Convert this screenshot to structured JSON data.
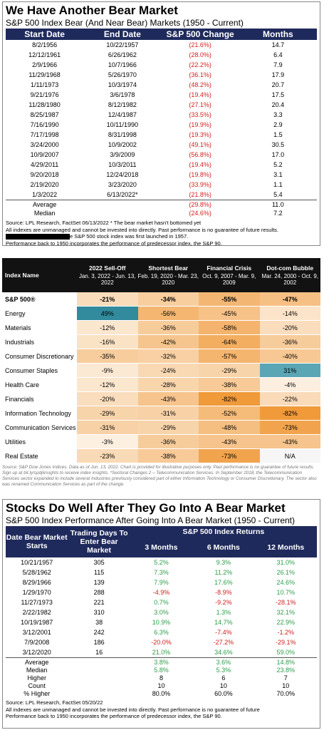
{
  "section1": {
    "title": "We Have Another Bear Market",
    "subtitle": "S&P 500 Index Bear (And Near Bear) Markets (1950 - Current)",
    "columns": [
      "Start Date",
      "End Date",
      "S&P 500 Change",
      "Months"
    ],
    "rows": [
      [
        "8/2/1956",
        "10/22/1957",
        "(21.6%)",
        "14.7"
      ],
      [
        "12/12/1961",
        "6/26/1962",
        "(28.0%)",
        "6.4"
      ],
      [
        "2/9/1966",
        "10/7/1966",
        "(22.2%)",
        "7.9"
      ],
      [
        "11/29/1968",
        "5/26/1970",
        "(36.1%)",
        "17.9"
      ],
      [
        "1/11/1973",
        "10/3/1974",
        "(48.2%)",
        "20.7"
      ],
      [
        "9/21/1976",
        "3/6/1978",
        "(19.4%)",
        "17.5"
      ],
      [
        "11/28/1980",
        "8/12/1982",
        "(27.1%)",
        "20.4"
      ],
      [
        "8/25/1987",
        "12/4/1987",
        "(33.5%)",
        "3.3"
      ],
      [
        "7/16/1990",
        "10/11/1990",
        "(19.9%)",
        "2.9"
      ],
      [
        "7/17/1998",
        "8/31/1998",
        "(19.3%)",
        "1.5"
      ],
      [
        "3/24/2000",
        "10/9/2002",
        "(49.1%)",
        "30.5"
      ],
      [
        "10/9/2007",
        "3/9/2009",
        "(56.8%)",
        "17.0"
      ],
      [
        "4/29/2011",
        "10/3/2011",
        "(19.4%)",
        "5.2"
      ],
      [
        "9/20/2018",
        "12/24/2018",
        "(19.8%)",
        "3.1"
      ],
      [
        "2/19/2020",
        "3/23/2020",
        "(33.9%)",
        "1.1"
      ],
      [
        "1/3/2022",
        "6/13/2022*",
        "(21.8%)",
        "5.4"
      ]
    ],
    "summary": [
      [
        "Average",
        "(29.8%)",
        "11.0"
      ],
      [
        "Median",
        "(24.6%)",
        "7.2"
      ]
    ],
    "notes": [
      "Source: LPL Research, FactSet 06/13/2022  * The bear market hasn't bottomed yet",
      "All indexes are unmanaged and cannot be invested into directly. Past performance is no guarantee of future results.",
      "e S&P 500 stock index was first launched in 1957.",
      "Performance back to 1950 incorporates the performance of predecessor index, the S&P 90."
    ]
  },
  "section2": {
    "columns": [
      {
        "name": "Index Name"
      },
      {
        "name": "2022 Sell-Off",
        "period": "Jan. 3, 2022 - Jun. 13, 2022"
      },
      {
        "name": "Shortest Bear",
        "period": "Feb. 19, 2020 - Mar. 23, 2020"
      },
      {
        "name": "Financial Crisis",
        "period": "Oct. 9, 2007 - Mar. 9, 2009"
      },
      {
        "name": "Dot-com Bubble",
        "period": "Mar. 24, 2000 - Oct. 9, 2002"
      }
    ],
    "rows": [
      [
        "S&P 500®",
        "-21%",
        "-34%",
        "-55%",
        "-47%"
      ],
      [
        "Energy",
        "49%",
        "-56%",
        "-45%",
        "-14%"
      ],
      [
        "Materials",
        "-12%",
        "-36%",
        "-58%",
        "-20%"
      ],
      [
        "Industrials",
        "-16%",
        "-42%",
        "-64%",
        "-36%"
      ],
      [
        "Consumer Discretionary",
        "-35%",
        "-32%",
        "-57%",
        "-40%"
      ],
      [
        "Consumer Staples",
        "-9%",
        "-24%",
        "-29%",
        "31%"
      ],
      [
        "Health Care",
        "-12%",
        "-28%",
        "-38%",
        "-4%"
      ],
      [
        "Financials",
        "-20%",
        "-43%",
        "-82%",
        "-22%"
      ],
      [
        "Information Technology",
        "-29%",
        "-31%",
        "-52%",
        "-82%"
      ],
      [
        "Communication Services",
        "-31%",
        "-29%",
        "-48%",
        "-73%"
      ],
      [
        "Utilities",
        "-3%",
        "-36%",
        "-43%",
        "-43%"
      ],
      [
        "Real Estate",
        "-23%",
        "-38%",
        "-73%",
        "N/A"
      ]
    ],
    "footnote": "Source: S&P Dow Jones Indices. Data as of Jun. 13, 2022. Chart is provided for illustrative purposes only. Past performance is no guarantee of future results. Sign up at bit.ly/spdjiinsights to receive index insights. *Sectoral Changes 2 – Telecommunication Services. In September 2018, the Telecommunication Services sector expanded to include several Industries previously considered part of either Information Technology or Consumer Discretionary. The sector also was renamed Communication Services as part of the change."
  },
  "section3": {
    "title": "Stocks Do Well After They Go Into A Bear Market",
    "subtitle": "S&P 500 Index Performance After Going Into A Bear Market (1950 - Current)",
    "group_header": "S&P 500 Index Returns",
    "columns": [
      "Date Bear Market Starts",
      "Trading Days To Enter Bear Market",
      "3 Months",
      "6 Months",
      "12 Months"
    ],
    "rows": [
      [
        "10/21/1957",
        "305",
        "5.2%",
        "9.3%",
        "31.0%"
      ],
      [
        "5/28/1962",
        "115",
        "7.3%",
        "11.2%",
        "26.1%"
      ],
      [
        "8/29/1966",
        "139",
        "7.9%",
        "17.6%",
        "24.6%"
      ],
      [
        "1/29/1970",
        "288",
        "-4.9%",
        "-8.9%",
        "10.7%"
      ],
      [
        "11/27/1973",
        "221",
        "0.7%",
        "-9.2%",
        "-28.1%"
      ],
      [
        "2/22/1982",
        "310",
        "3.0%",
        "1.3%",
        "32.1%"
      ],
      [
        "10/19/1987",
        "38",
        "10.9%",
        "14.7%",
        "22.9%"
      ],
      [
        "3/12/2001",
        "242",
        "6.3%",
        "-7.4%",
        "-1.2%"
      ],
      [
        "7/9/2008",
        "186",
        "-20.0%",
        "-27.2%",
        "-29.1%"
      ],
      [
        "3/12/2020",
        "16",
        "21.0%",
        "34.6%",
        "59.0%"
      ]
    ],
    "summary": [
      [
        "Average",
        "3.8%",
        "3.6%",
        "14.8%"
      ],
      [
        "Median",
        "5.8%",
        "5.3%",
        "23.8%"
      ],
      [
        "Higher",
        "8",
        "6",
        "7"
      ],
      [
        "Count",
        "10",
        "10",
        "10"
      ],
      [
        "% Higher",
        "80.0%",
        "60.0%",
        "70.0%"
      ]
    ],
    "notes": [
      "Source: LPL Research, FactSet 05/20/22",
      "All indexes are unmanaged and cannot be invested into directly. Past performance is no guarantee of future",
      "Performance back to 1950 incorporates the performance of predecessor index, the S&P 90."
    ]
  }
}
